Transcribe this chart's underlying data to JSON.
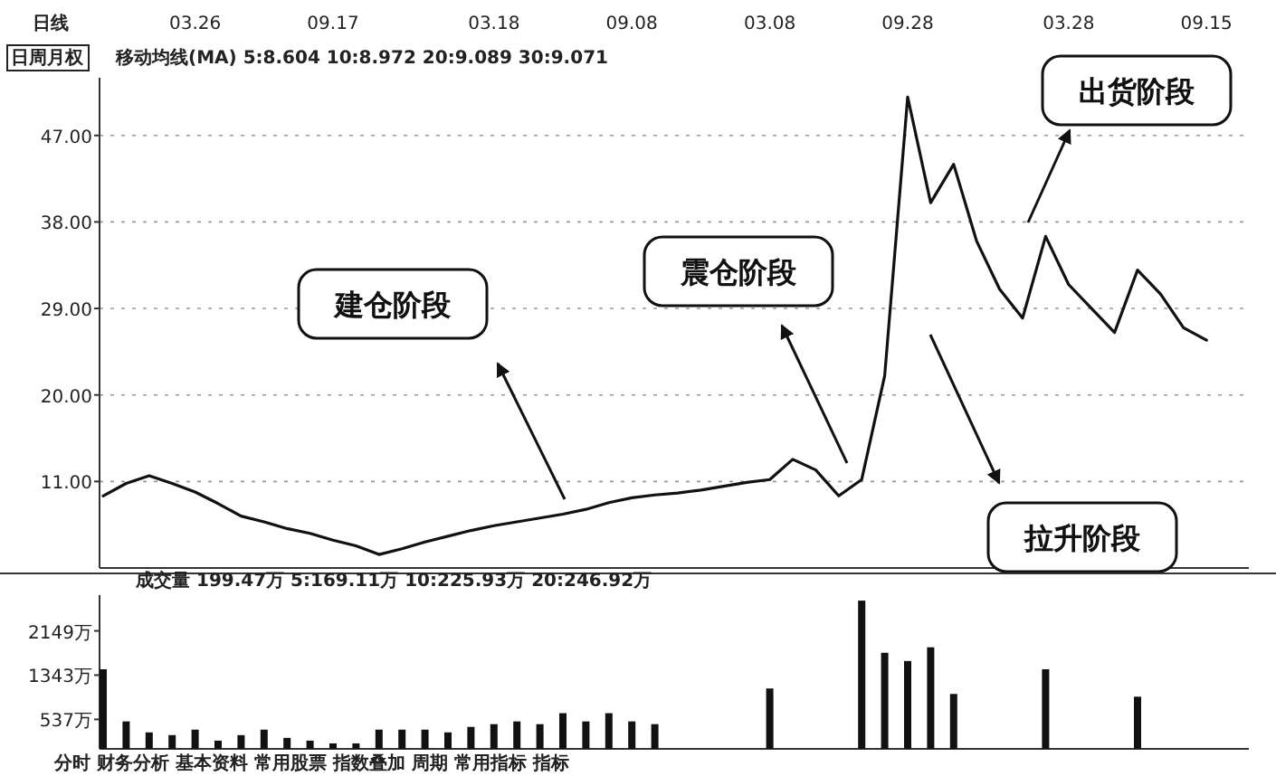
{
  "chart_data": [
    {
      "type": "line",
      "ylim": [
        2,
        53
      ],
      "categories": [
        null,
        null,
        null,
        null,
        "03.26",
        null,
        null,
        null,
        null,
        null,
        "09.17",
        null,
        null,
        null,
        null,
        null,
        null,
        "03.18",
        null,
        null,
        null,
        null,
        null,
        "09.08",
        null,
        null,
        null,
        null,
        null,
        "03.08",
        null,
        null,
        null,
        null,
        null,
        "09.28",
        null,
        null,
        null,
        null,
        null,
        null,
        "03.28",
        null,
        null,
        null,
        null,
        null,
        "09.15",
        null
      ],
      "yticks": [
        {
          "value": 11,
          "label": "11.00"
        },
        {
          "value": 20,
          "label": "20.00"
        },
        {
          "value": 29,
          "label": "29.00"
        },
        {
          "value": 38,
          "label": "38.00"
        },
        {
          "value": 47,
          "label": "47.00"
        }
      ],
      "grid": "y",
      "marker": "none",
      "line_style": "solid",
      "series": [
        {
          "color": "#111111",
          "values": [
            9.5,
            10.8,
            11.6,
            10.8,
            9.9,
            8.7,
            7.4,
            6.8,
            6.1,
            5.6,
            4.9,
            4.3,
            3.4,
            4.0,
            4.7,
            5.3,
            5.9,
            6.4,
            6.8,
            7.2,
            7.6,
            8.1,
            8.8,
            9.3,
            9.6,
            9.8,
            10.1,
            10.5,
            10.9,
            11.2,
            13.3,
            12.2,
            9.5,
            11.2,
            22,
            51,
            40,
            44,
            36,
            31,
            28,
            36.5,
            31.5,
            29,
            26.5,
            33,
            30.5,
            27,
            25.7,
            null
          ]
        }
      ],
      "annotations": [
        "日线",
        "日周月权",
        "移动均线(MA) 5:8.604 10:8.972 20:9.089 30:9.071",
        "建仓阶段",
        "震仓阶段",
        "拉升阶段",
        "出货阶段"
      ]
    },
    {
      "type": "bar",
      "ylim": [
        0,
        2800
      ],
      "tick_labels": "y",
      "categories": [
        null,
        null,
        null,
        null,
        "03.26",
        null,
        null,
        null,
        null,
        null,
        "09.17",
        null,
        null,
        null,
        null,
        null,
        null,
        "03.18",
        null,
        null,
        null,
        null,
        null,
        "09.08",
        null,
        null,
        null,
        null,
        null,
        "03.08",
        null,
        null,
        null,
        null,
        null,
        "09.28",
        null,
        null,
        null,
        null,
        null,
        null,
        "03.28",
        null,
        null,
        null,
        null,
        null,
        "09.15",
        null
      ],
      "yticks": [
        {
          "value": 537,
          "label": "537万"
        },
        {
          "value": 1343,
          "label": "1343万"
        },
        {
          "value": 2149,
          "label": "2149万"
        }
      ],
      "values": [
        1450,
        500,
        300,
        250,
        350,
        150,
        250,
        350,
        200,
        150,
        100,
        100,
        350,
        350,
        350,
        300,
        400,
        450,
        500,
        450,
        650,
        500,
        650,
        500,
        450,
        null,
        null,
        null,
        null,
        1100,
        null,
        null,
        null,
        2700,
        1750,
        1600,
        1850,
        1000,
        null,
        null,
        null,
        1450,
        null,
        null,
        null,
        950,
        null,
        null,
        null,
        null
      ],
      "color": "#111111",
      "annotations": [
        "成交量 199.47万 5:169.11万 10:225.93万 20:246.92万",
        "分时 财务分析 基本资料 常用股票 指数叠加 周期 常用指标 指标"
      ]
    }
  ]
}
